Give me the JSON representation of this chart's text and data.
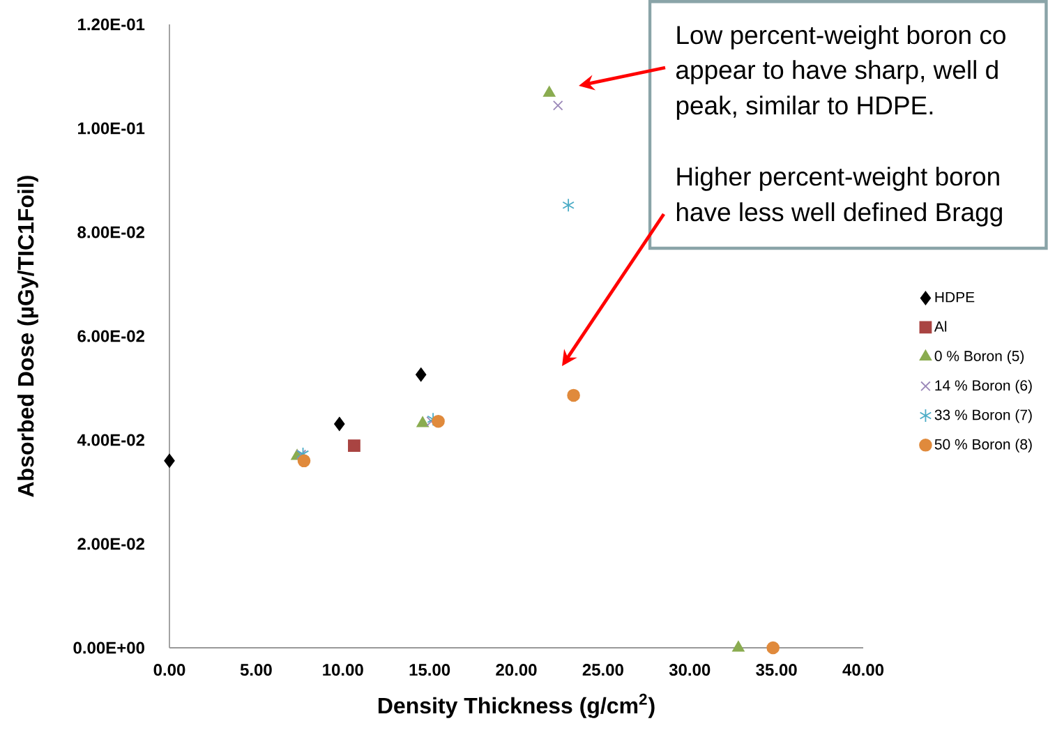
{
  "chart_data": {
    "type": "scatter",
    "xlabel": "Density Thickness (g/cm$^{2}$)",
    "ylabel": "Absorbed Dose (µGy/TIC1Foil)",
    "xlim": [
      0,
      40
    ],
    "ylim": [
      0,
      0.12
    ],
    "xticks": [
      {
        "value": 0,
        "label": "0.00"
      },
      {
        "value": 5,
        "label": "5.00"
      },
      {
        "value": 10,
        "label": "10.00"
      },
      {
        "value": 15,
        "label": "15.00"
      },
      {
        "value": 20,
        "label": "20.00"
      },
      {
        "value": 25,
        "label": "25.00"
      },
      {
        "value": 30,
        "label": "30.00"
      },
      {
        "value": 35,
        "label": "35.00"
      },
      {
        "value": 40,
        "label": "40.00"
      }
    ],
    "yticks": [
      {
        "value": 0,
        "label": "0.00E+00"
      },
      {
        "value": 0.02,
        "label": "2.00E-02"
      },
      {
        "value": 0.04,
        "label": "4.00E-02"
      },
      {
        "value": 0.06,
        "label": "6.00E-02"
      },
      {
        "value": 0.08,
        "label": "8.00E-02"
      },
      {
        "value": 0.1,
        "label": "1.00E-01"
      },
      {
        "value": 0.12,
        "label": "1.20E-01"
      }
    ],
    "legend": "right",
    "grid": false,
    "series": [
      {
        "name": "HDPE",
        "color": "#000000",
        "marker": "diamond",
        "x": [
          0,
          9.8,
          14.5
        ],
        "values": [
          0.036,
          0.0431,
          0.0526
        ]
      },
      {
        "name": "Al",
        "color": "#a94442",
        "marker": "square",
        "x": [
          10.65
        ],
        "values": [
          0.0389
        ]
      },
      {
        "name": "0 % Boron (5)",
        "color": "#8aac50",
        "marker": "triangle",
        "x": [
          7.36,
          14.6,
          21.9,
          32.8
        ],
        "values": [
          0.0369,
          0.0432,
          0.1068,
          0
        ]
      },
      {
        "name": "14 % Boron (6)",
        "color": "#9a87b8",
        "marker": "cross",
        "x": [
          7.6,
          15.1,
          22.4
        ],
        "values": [
          0.0372,
          0.0436,
          0.1044
        ]
      },
      {
        "name": "33 % Boron (7)",
        "color": "#4bacc6",
        "x": [
          7.7,
          15.2,
          23.0
        ],
        "values": [
          0.0373,
          0.044,
          0.0852
        ]
      },
      {
        "name": "50 % Boron (8)",
        "color": "#e08a3c",
        "marker": "circle",
        "x": [
          7.76,
          15.5,
          23.3,
          34.8
        ],
        "values": [
          0.036,
          0.0436,
          0.0486,
          0.0
        ]
      }
    ],
    "annotations": [
      "Low percent-weight boron co",
      "appear to have sharp, well d",
      "peak, similar to HDPE.",
      "Higher percent-weight boron",
      "have less well defined Bragg"
    ]
  }
}
